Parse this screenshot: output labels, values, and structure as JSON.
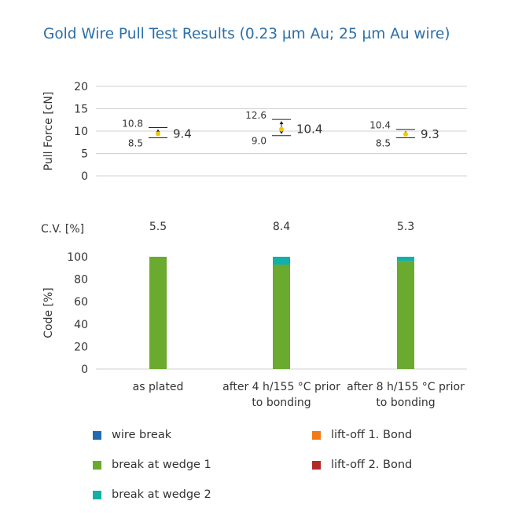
{
  "title": "Gold Wire Pull Test Results (0.23 µm Au; 25 µm Au wire)",
  "chart_data": [
    {
      "type": "scatter",
      "ylabel": "Pull Force [cN]",
      "ylim": [
        0,
        20
      ],
      "yticks": [
        "0",
        "5",
        "10",
        "15",
        "20"
      ],
      "grid": true,
      "categories": [
        "as plated",
        "after 4 h/155 °C prior to bonding",
        "after 8 h/155 °C prior to bonding"
      ],
      "mean": [
        9.4,
        10.4,
        9.3
      ],
      "max": [
        10.8,
        12.6,
        10.4
      ],
      "min": [
        8.5,
        9.0,
        8.5
      ],
      "mean_labels": [
        "9.4",
        "10.4",
        "9.3"
      ],
      "max_labels": [
        "10.8",
        "12.6",
        "10.4"
      ],
      "min_labels": [
        "8.5",
        "9.0",
        "8.5"
      ],
      "point_color": "#f0c800"
    },
    {
      "type": "table",
      "row_label": "C.V. [%]",
      "values": [
        "5.5",
        "8.4",
        "5.3"
      ]
    },
    {
      "type": "bar",
      "stacked": true,
      "ylabel": "Code [%]",
      "ylim": [
        0,
        100
      ],
      "yticks": [
        "0",
        "20",
        "40",
        "60",
        "80",
        "100"
      ],
      "categories": [
        "as plated",
        "after 4 h/155 °C prior to bonding",
        "after 8 h/155 °C prior to bonding"
      ],
      "category_lines": [
        [
          "as plated"
        ],
        [
          "after 4 h/155 °C prior",
          "to bonding"
        ],
        [
          "after 8 h/155 °C prior",
          "to bonding"
        ]
      ],
      "series": [
        {
          "name": "wire break",
          "color": "#1f6db0",
          "values": [
            0,
            0,
            0
          ]
        },
        {
          "name": "break at wedge 1",
          "color": "#6aaa2e",
          "values": [
            100,
            93,
            96
          ]
        },
        {
          "name": "break at wedge 2",
          "color": "#12b0a8",
          "values": [
            0,
            7,
            4
          ]
        },
        {
          "name": "lift-off 1. Bond",
          "color": "#f07a16",
          "values": [
            0,
            0,
            0
          ]
        },
        {
          "name": "lift-off 2. Bond",
          "color": "#b22a26",
          "values": [
            0,
            0,
            0
          ]
        }
      ],
      "legend_position": "bottom"
    }
  ]
}
